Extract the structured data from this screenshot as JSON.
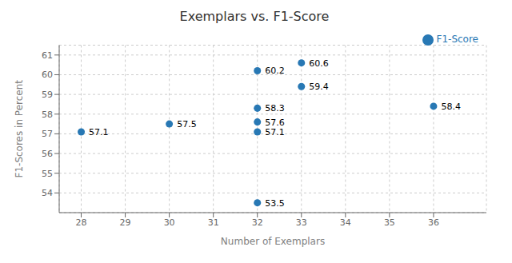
{
  "chart_data": {
    "type": "scatter",
    "title": "Exemplars vs. F1-Score",
    "xlabel": "Number of Exemplars",
    "ylabel": "F1-Scores in Percent",
    "series": [
      {
        "name": "F1-Score",
        "color": "#2878b4",
        "x": [
          28,
          30,
          32,
          32,
          32,
          32,
          32,
          33,
          33,
          36
        ],
        "values": [
          57.1,
          57.5,
          60.2,
          58.3,
          57.6,
          57.1,
          53.5,
          60.6,
          59.4,
          58.4
        ]
      }
    ],
    "xlim": [
      27.5,
      37.2
    ],
    "ylim": [
      53.0,
      61.5
    ],
    "xticks": [
      28,
      29,
      30,
      31,
      32,
      33,
      34,
      35,
      36
    ],
    "yticks": [
      54,
      55,
      56,
      57,
      58,
      59,
      60,
      61
    ],
    "grid": true,
    "legend": "upper right",
    "data_labels": true
  }
}
